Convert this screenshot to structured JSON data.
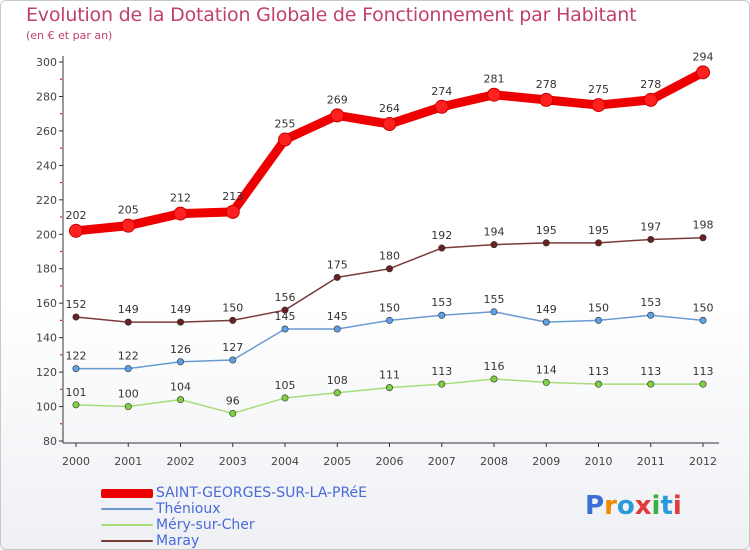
{
  "header": {
    "title": "Evolution de la Dotation Globale de Fonctionnement par Habitant",
    "subtitle": "(en € et par an)"
  },
  "brand": {
    "logo_text": "Proxiti"
  },
  "chart_data": {
    "type": "line",
    "title": "Evolution de la Dotation Globale de Fonctionnement par Habitant",
    "subtitle": "(en € et par an)",
    "xlabel": "",
    "ylabel": "",
    "ylim": [
      80,
      300
    ],
    "yticks": [
      80,
      100,
      120,
      140,
      160,
      180,
      200,
      220,
      240,
      260,
      280,
      300
    ],
    "grid": false,
    "legend_position": "bottom-left",
    "categories": [
      "2000",
      "2001",
      "2002",
      "2003",
      "2004",
      "2005",
      "2006",
      "2007",
      "2008",
      "2009",
      "2010",
      "2011",
      "2012"
    ],
    "series": [
      {
        "name": "SAINT-GEORGES-SUR-LA-PRéE",
        "color": "#ee0000",
        "marker": "#ff2020",
        "highlight": true,
        "values": [
          202,
          205,
          212,
          213,
          255,
          269,
          264,
          274,
          281,
          278,
          275,
          278,
          294
        ]
      },
      {
        "name": "Thénioux",
        "color": "#6a9ad0",
        "marker": "#5ea0e6",
        "values": [
          122,
          122,
          126,
          127,
          145,
          145,
          150,
          153,
          155,
          149,
          150,
          153,
          150
        ]
      },
      {
        "name": "Méry-sur-Cher",
        "color": "#a8dc78",
        "marker": "#7ed040",
        "values": [
          101,
          100,
          104,
          96,
          105,
          108,
          111,
          113,
          116,
          114,
          113,
          113,
          113
        ]
      },
      {
        "name": "Maray",
        "color": "#7a3a3a",
        "marker": "#6a2020",
        "values": [
          152,
          149,
          149,
          150,
          156,
          175,
          180,
          192,
          194,
          195,
          195,
          197,
          198
        ]
      }
    ]
  }
}
